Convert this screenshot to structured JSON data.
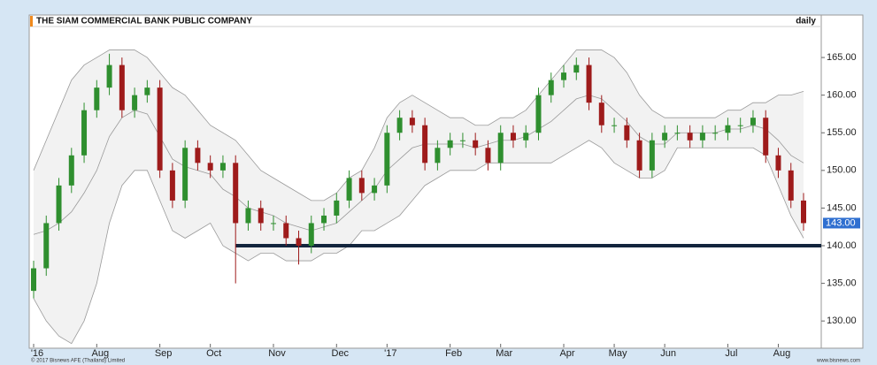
{
  "chart_data": {
    "type": "candlestick",
    "title": "THE SIAM COMMERCIAL BANK PUBLIC COMPANY",
    "period": "daily",
    "categories": [
      "'16",
      null,
      null,
      null,
      null,
      "Aug",
      null,
      null,
      null,
      null,
      "Sep",
      null,
      null,
      null,
      "Oct",
      null,
      null,
      null,
      null,
      "Nov",
      null,
      null,
      null,
      null,
      "Dec",
      null,
      null,
      null,
      "'17",
      null,
      null,
      null,
      null,
      "Feb",
      null,
      null,
      null,
      "Mar",
      null,
      null,
      null,
      null,
      "Apr",
      null,
      null,
      null,
      "May",
      null,
      null,
      null,
      "Jun",
      null,
      null,
      null,
      null,
      "Jul",
      null,
      null,
      null,
      "Aug",
      null,
      null
    ],
    "open": [
      134,
      137,
      143,
      148,
      152,
      158,
      161,
      164,
      158,
      160,
      161,
      150,
      146,
      153,
      151,
      150,
      151,
      143,
      145,
      143,
      143,
      141,
      140,
      143,
      144,
      146,
      149,
      147,
      148,
      155,
      157,
      156,
      151,
      153,
      154,
      154,
      153,
      151,
      155,
      154,
      155,
      160,
      162,
      163,
      164,
      159,
      156,
      156,
      154,
      150,
      154,
      155,
      155,
      154,
      155,
      155,
      156,
      156,
      157,
      152,
      150,
      146
    ],
    "high": [
      138,
      144,
      149,
      153,
      159,
      162,
      165.5,
      165,
      161,
      162,
      162,
      151,
      154,
      154,
      152,
      152,
      152,
      146,
      146,
      144,
      144,
      142,
      144,
      145,
      147,
      150,
      150,
      149,
      156,
      158,
      158,
      157,
      154,
      155,
      155,
      155,
      154,
      156,
      156,
      156,
      161,
      163,
      164,
      165,
      165,
      160,
      157,
      157,
      155,
      155,
      156,
      156,
      156,
      156,
      156,
      157,
      157,
      158,
      158,
      153,
      151,
      147
    ],
    "low": [
      133,
      136,
      142,
      147,
      151,
      157,
      160,
      157,
      157,
      159,
      149,
      145,
      145,
      150,
      149,
      149,
      135,
      142,
      142,
      142,
      140,
      137.5,
      139,
      142,
      143,
      145,
      146,
      146,
      147,
      154,
      155,
      150,
      150,
      152,
      153,
      152,
      150,
      150,
      153,
      153,
      154,
      159,
      161,
      162,
      158,
      155,
      155,
      153,
      149,
      149,
      153,
      154,
      153,
      153,
      154,
      154,
      155,
      155,
      151,
      149,
      145,
      142
    ],
    "close": [
      137,
      143,
      148,
      152,
      158,
      161,
      164,
      158,
      160,
      161,
      150,
      146,
      153,
      151,
      150,
      151,
      143,
      145,
      143,
      143,
      141,
      140,
      143,
      144,
      146,
      149,
      147,
      148,
      155,
      157,
      156,
      151,
      153,
      154,
      154,
      153,
      151,
      155,
      154,
      155,
      160,
      162,
      163,
      164,
      159,
      156,
      156,
      154,
      150,
      154,
      155,
      155,
      154,
      155,
      155,
      156,
      156,
      157,
      152,
      150,
      146,
      143
    ],
    "up_color": "#2f8f2f",
    "down_color": "#9e1b1b",
    "bands": {
      "upper": [
        150,
        154,
        158,
        162,
        164,
        165,
        166,
        166,
        166,
        165,
        163,
        161,
        160,
        158,
        156,
        155,
        154,
        152,
        150,
        149,
        148,
        147,
        146,
        146,
        147,
        149,
        150,
        153,
        157,
        159,
        160,
        159,
        158,
        157,
        157,
        156,
        156,
        157,
        157,
        158,
        160,
        162,
        164,
        166,
        166,
        166,
        165,
        163,
        160,
        158,
        157,
        157,
        157,
        157,
        157,
        158,
        158,
        159,
        159,
        160,
        160,
        160.5
      ],
      "middle": [
        141.5,
        142,
        143,
        144.5,
        147,
        150,
        154.5,
        157,
        158,
        157.5,
        154.5,
        151.5,
        150.5,
        150,
        149.5,
        147.5,
        146.5,
        145,
        144.5,
        144,
        143,
        142.5,
        142,
        142.5,
        143,
        144.5,
        146,
        147.5,
        150,
        151.5,
        153,
        153.5,
        153.5,
        153.5,
        153.5,
        153,
        153.5,
        154,
        154,
        154.5,
        155.5,
        156.5,
        158,
        159.5,
        160,
        159.5,
        158,
        156.5,
        154.5,
        153.5,
        153.5,
        155,
        155,
        155,
        155,
        155.5,
        155.5,
        156,
        155.5,
        154,
        152,
        151
      ],
      "lower": [
        133,
        130,
        128,
        127,
        130,
        135,
        143,
        148,
        150,
        150,
        146,
        142,
        141,
        142,
        143,
        140,
        139,
        138,
        139,
        139,
        138,
        138,
        138,
        139,
        139,
        140,
        142,
        142,
        143,
        144,
        146,
        148,
        149,
        150,
        150,
        150,
        151,
        151,
        151,
        151,
        151,
        151,
        152,
        153,
        154,
        153,
        151,
        150,
        149,
        149,
        150,
        153,
        153,
        153,
        153,
        153,
        153,
        153,
        152,
        148,
        144,
        141
      ]
    },
    "support_level": 140,
    "last_price_label": "143.00",
    "ylim": [
      126.5,
      169
    ],
    "yticks": [
      {
        "value": 130,
        "label": "130.00"
      },
      {
        "value": 135,
        "label": "135.00"
      },
      {
        "value": 140,
        "label": "140.00"
      },
      {
        "value": 145,
        "label": "145.00"
      },
      {
        "value": 150,
        "label": "150.00"
      },
      {
        "value": 155,
        "label": "155.00"
      },
      {
        "value": 160,
        "label": "160.00"
      },
      {
        "value": 165,
        "label": "165.00"
      }
    ],
    "copyright": "© 2017 Bisnews AFE (Thailand) Limited",
    "website": "www.bisnews.com"
  }
}
